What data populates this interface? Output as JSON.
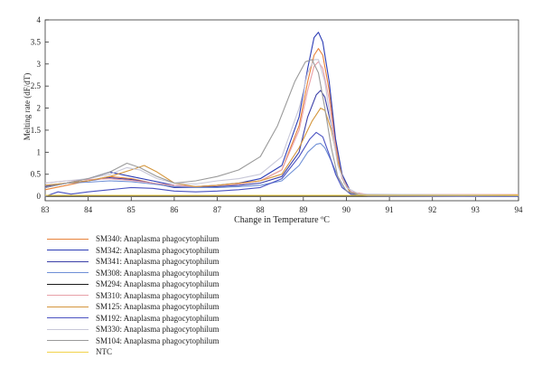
{
  "chart_data": {
    "type": "line",
    "xlabel": "Change in Temperature ºC",
    "ylabel": "Melting rate (dF/dT)",
    "xlim": [
      83,
      94
    ],
    "ylim": [
      -0.1,
      4
    ],
    "xticks": [
      "83",
      "84",
      "85",
      "86",
      "87",
      "88",
      "89",
      "90",
      "91",
      "92",
      "93",
      "94"
    ],
    "yticks": [
      "0",
      "0.5",
      "1",
      "1.5",
      "2",
      "2.5",
      "3",
      "3.5",
      "4"
    ],
    "series": [
      {
        "name": "SM340: Anaplasma phagocytophilum",
        "color": "#e8823a",
        "points": [
          [
            83,
            0.15
          ],
          [
            83.5,
            0.25
          ],
          [
            84,
            0.35
          ],
          [
            84.5,
            0.45
          ],
          [
            85,
            0.4
          ],
          [
            85.5,
            0.3
          ],
          [
            86,
            0.22
          ],
          [
            86.5,
            0.2
          ],
          [
            87,
            0.25
          ],
          [
            87.5,
            0.28
          ],
          [
            88,
            0.35
          ],
          [
            88.5,
            0.6
          ],
          [
            88.9,
            1.6
          ],
          [
            89.1,
            2.6
          ],
          [
            89.25,
            3.2
          ],
          [
            89.35,
            3.35
          ],
          [
            89.45,
            3.2
          ],
          [
            89.6,
            2.4
          ],
          [
            89.75,
            1.2
          ],
          [
            89.9,
            0.45
          ],
          [
            90.1,
            0.1
          ],
          [
            90.5,
            0.03
          ],
          [
            91,
            0.02
          ],
          [
            94,
            0.02
          ]
        ]
      },
      {
        "name": "SM342: Anaplasma phagocytophilum",
        "color": "#2c3cb5",
        "points": [
          [
            83,
            0.2
          ],
          [
            83.5,
            0.3
          ],
          [
            84,
            0.4
          ],
          [
            84.5,
            0.55
          ],
          [
            85,
            0.45
          ],
          [
            85.5,
            0.35
          ],
          [
            86,
            0.25
          ],
          [
            86.5,
            0.22
          ],
          [
            87,
            0.25
          ],
          [
            87.5,
            0.3
          ],
          [
            88,
            0.4
          ],
          [
            88.5,
            0.7
          ],
          [
            88.9,
            1.8
          ],
          [
            89.1,
            2.9
          ],
          [
            89.25,
            3.6
          ],
          [
            89.35,
            3.72
          ],
          [
            89.45,
            3.5
          ],
          [
            89.6,
            2.6
          ],
          [
            89.75,
            1.3
          ],
          [
            89.9,
            0.5
          ],
          [
            90.1,
            0.1
          ],
          [
            90.5,
            0.03
          ],
          [
            91,
            0.02
          ],
          [
            94,
            0.02
          ]
        ]
      },
      {
        "name": "SM341: Anaplasma phagocytophilum",
        "color": "#3b3fa8",
        "points": [
          [
            83,
            0.22
          ],
          [
            83.5,
            0.3
          ],
          [
            84,
            0.35
          ],
          [
            84.5,
            0.42
          ],
          [
            85,
            0.38
          ],
          [
            85.5,
            0.3
          ],
          [
            86,
            0.2
          ],
          [
            86.5,
            0.2
          ],
          [
            87,
            0.22
          ],
          [
            87.5,
            0.25
          ],
          [
            88,
            0.3
          ],
          [
            88.5,
            0.45
          ],
          [
            88.9,
            1.0
          ],
          [
            89.1,
            1.8
          ],
          [
            89.3,
            2.3
          ],
          [
            89.4,
            2.4
          ],
          [
            89.5,
            2.25
          ],
          [
            89.65,
            1.6
          ],
          [
            89.8,
            0.8
          ],
          [
            89.95,
            0.3
          ],
          [
            90.1,
            0.08
          ],
          [
            90.5,
            0.02
          ],
          [
            94,
            0.01
          ]
        ]
      },
      {
        "name": "SM308: Anaplasma phagocytophilum",
        "color": "#6e8fd6",
        "points": [
          [
            83,
            0.25
          ],
          [
            83.5,
            0.3
          ],
          [
            84,
            0.32
          ],
          [
            84.5,
            0.35
          ],
          [
            85,
            0.33
          ],
          [
            85.5,
            0.28
          ],
          [
            86,
            0.22
          ],
          [
            86.5,
            0.2
          ],
          [
            87,
            0.2
          ],
          [
            87.5,
            0.22
          ],
          [
            88,
            0.25
          ],
          [
            88.5,
            0.35
          ],
          [
            88.9,
            0.7
          ],
          [
            89.1,
            1.0
          ],
          [
            89.3,
            1.18
          ],
          [
            89.4,
            1.2
          ],
          [
            89.5,
            1.1
          ],
          [
            89.65,
            0.8
          ],
          [
            89.8,
            0.45
          ],
          [
            89.95,
            0.18
          ],
          [
            90.1,
            0.05
          ],
          [
            90.5,
            0.01
          ],
          [
            94,
            0.0
          ]
        ]
      },
      {
        "name": "SM294: Anaplasma phagocytophilum",
        "color": "#1a1a1a",
        "points": [
          [
            83,
            0.0
          ],
          [
            84,
            0.0
          ],
          [
            85,
            0.0
          ],
          [
            86,
            0.0
          ],
          [
            87,
            0.0
          ],
          [
            88,
            0.0
          ],
          [
            89,
            0.0
          ],
          [
            90,
            0.0
          ],
          [
            91,
            0.0
          ],
          [
            92,
            0.0
          ],
          [
            93,
            0.0
          ],
          [
            94,
            0.0
          ]
        ]
      },
      {
        "name": "SM310: Anaplasma phagocytophilum",
        "color": "#e8a0a8",
        "points": [
          [
            83,
            0.3
          ],
          [
            83.5,
            0.35
          ],
          [
            84,
            0.38
          ],
          [
            84.5,
            0.4
          ],
          [
            85,
            0.36
          ],
          [
            85.5,
            0.3
          ],
          [
            86,
            0.25
          ],
          [
            86.5,
            0.22
          ],
          [
            87,
            0.25
          ],
          [
            87.5,
            0.28
          ],
          [
            88,
            0.35
          ],
          [
            88.5,
            0.6
          ],
          [
            88.9,
            1.5
          ],
          [
            89.1,
            2.4
          ],
          [
            89.25,
            2.95
          ],
          [
            89.35,
            3.05
          ],
          [
            89.45,
            2.9
          ],
          [
            89.6,
            2.2
          ],
          [
            89.75,
            1.1
          ],
          [
            89.9,
            0.4
          ],
          [
            90.1,
            0.1
          ],
          [
            90.5,
            0.04
          ],
          [
            94,
            0.04
          ]
        ]
      },
      {
        "name": "SM125: Anaplasma phagocytophilum",
        "color": "#d4963c",
        "points": [
          [
            83,
            0.25
          ],
          [
            83.5,
            0.3
          ],
          [
            84,
            0.35
          ],
          [
            84.5,
            0.45
          ],
          [
            85,
            0.6
          ],
          [
            85.3,
            0.7
          ],
          [
            85.6,
            0.55
          ],
          [
            86,
            0.3
          ],
          [
            86.5,
            0.22
          ],
          [
            87,
            0.25
          ],
          [
            87.5,
            0.3
          ],
          [
            88,
            0.35
          ],
          [
            88.5,
            0.5
          ],
          [
            88.9,
            1.1
          ],
          [
            89.2,
            1.7
          ],
          [
            89.4,
            2.0
          ],
          [
            89.5,
            1.95
          ],
          [
            89.65,
            1.5
          ],
          [
            89.8,
            0.8
          ],
          [
            89.95,
            0.3
          ],
          [
            90.1,
            0.08
          ],
          [
            90.5,
            0.03
          ],
          [
            94,
            0.03
          ]
        ]
      },
      {
        "name": "SM192: Anaplasma phagocytophilum",
        "color": "#4a52c2",
        "points": [
          [
            83,
            0.0
          ],
          [
            83.3,
            0.1
          ],
          [
            83.6,
            0.05
          ],
          [
            84,
            0.1
          ],
          [
            84.5,
            0.15
          ],
          [
            85,
            0.2
          ],
          [
            85.5,
            0.18
          ],
          [
            86,
            0.12
          ],
          [
            86.5,
            0.1
          ],
          [
            87,
            0.12
          ],
          [
            87.5,
            0.15
          ],
          [
            88,
            0.2
          ],
          [
            88.5,
            0.4
          ],
          [
            88.9,
            0.9
          ],
          [
            89.15,
            1.3
          ],
          [
            89.3,
            1.45
          ],
          [
            89.45,
            1.35
          ],
          [
            89.6,
            0.95
          ],
          [
            89.75,
            0.5
          ],
          [
            89.9,
            0.2
          ],
          [
            90.1,
            0.05
          ],
          [
            90.5,
            0.01
          ],
          [
            94,
            0.0
          ]
        ]
      },
      {
        "name": "SM330: Anaplasma phagocytophilum",
        "color": "#c8c8d8",
        "points": [
          [
            83,
            0.3
          ],
          [
            83.5,
            0.35
          ],
          [
            84,
            0.4
          ],
          [
            84.5,
            0.5
          ],
          [
            84.9,
            0.65
          ],
          [
            85.2,
            0.6
          ],
          [
            85.6,
            0.4
          ],
          [
            86,
            0.3
          ],
          [
            86.5,
            0.28
          ],
          [
            87,
            0.35
          ],
          [
            87.5,
            0.4
          ],
          [
            88,
            0.5
          ],
          [
            88.5,
            0.9
          ],
          [
            88.9,
            2.0
          ],
          [
            89.1,
            2.8
          ],
          [
            89.25,
            3.1
          ],
          [
            89.35,
            3.1
          ],
          [
            89.5,
            2.6
          ],
          [
            89.65,
            1.6
          ],
          [
            89.8,
            0.7
          ],
          [
            90,
            0.2
          ],
          [
            90.3,
            0.05
          ],
          [
            94,
            0.02
          ]
        ]
      },
      {
        "name": "SM104: Anaplasma phagocytophilum",
        "color": "#9a9a9a",
        "points": [
          [
            83,
            0.2
          ],
          [
            83.5,
            0.3
          ],
          [
            84,
            0.4
          ],
          [
            84.5,
            0.55
          ],
          [
            84.9,
            0.75
          ],
          [
            85.2,
            0.65
          ],
          [
            85.6,
            0.45
          ],
          [
            86,
            0.3
          ],
          [
            86.5,
            0.35
          ],
          [
            87,
            0.45
          ],
          [
            87.5,
            0.6
          ],
          [
            88,
            0.9
          ],
          [
            88.4,
            1.6
          ],
          [
            88.8,
            2.6
          ],
          [
            89.05,
            3.05
          ],
          [
            89.2,
            3.1
          ],
          [
            89.35,
            2.8
          ],
          [
            89.5,
            2.0
          ],
          [
            89.65,
            1.1
          ],
          [
            89.8,
            0.45
          ],
          [
            90,
            0.12
          ],
          [
            90.3,
            0.03
          ],
          [
            94,
            0.02
          ]
        ]
      },
      {
        "name": "NTC",
        "color": "#f2d24a",
        "points": [
          [
            83,
            0.02
          ],
          [
            84,
            0.02
          ],
          [
            85,
            0.02
          ],
          [
            86,
            0.02
          ],
          [
            87,
            0.02
          ],
          [
            88,
            0.02
          ],
          [
            89,
            0.02
          ],
          [
            90,
            0.02
          ],
          [
            91,
            0.02
          ],
          [
            92,
            0.02
          ],
          [
            93,
            0.02
          ],
          [
            94,
            0.02
          ]
        ]
      }
    ]
  }
}
